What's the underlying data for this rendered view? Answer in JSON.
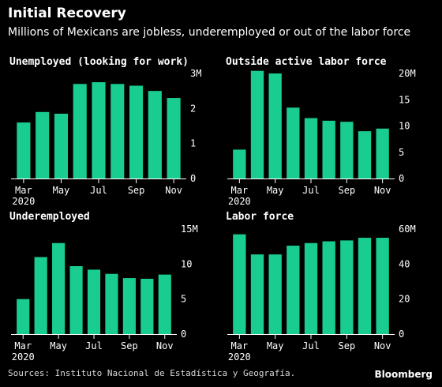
{
  "header": {
    "title": "Initial Recovery",
    "subtitle": "Millions of Mexicans are jobless, underemployed or out of the labor force"
  },
  "footer": {
    "source": "Sources: Instituto Nacional de Estadística y Geografía.",
    "brand": "Bloomberg"
  },
  "colors": {
    "bar": "#19cc8f",
    "background": "#000000",
    "text": "#ffffff",
    "axis": "#ffffff"
  },
  "chart_data": [
    {
      "type": "bar",
      "title": "Unemployed (looking for work)",
      "categories": [
        "Mar",
        "Apr",
        "May",
        "Jun",
        "Jul",
        "Aug",
        "Sep",
        "Oct",
        "Nov"
      ],
      "x_tick_labels": [
        "Mar",
        "May",
        "Jul",
        "Sep",
        "Nov"
      ],
      "x_year_label": "2020",
      "values": [
        1.6,
        1.9,
        1.85,
        2.7,
        2.75,
        2.7,
        2.65,
        2.5,
        2.3
      ],
      "ylim": [
        0,
        3
      ],
      "y_ticks": [
        0,
        1,
        2,
        3
      ],
      "y_tick_labels": [
        "0",
        "1",
        "2",
        "3M"
      ]
    },
    {
      "type": "bar",
      "title": "Outside active labor force",
      "categories": [
        "Mar",
        "Apr",
        "May",
        "Jun",
        "Jul",
        "Aug",
        "Sep",
        "Oct",
        "Nov"
      ],
      "x_tick_labels": [
        "Mar",
        "May",
        "Jul",
        "Sep",
        "Nov"
      ],
      "x_year_label": "2020",
      "values": [
        5.5,
        20.5,
        20,
        13.5,
        11.5,
        11,
        10.8,
        9,
        9.5
      ],
      "ylim": [
        0,
        20
      ],
      "y_ticks": [
        0,
        5,
        10,
        15,
        20
      ],
      "y_tick_labels": [
        "0",
        "5",
        "10",
        "15",
        "20M"
      ]
    },
    {
      "type": "bar",
      "title": "Underemployed",
      "categories": [
        "Mar",
        "Apr",
        "May",
        "Jun",
        "Jul",
        "Aug",
        "Sep",
        "Oct",
        "Nov"
      ],
      "x_tick_labels": [
        "Mar",
        "May",
        "Jul",
        "Sep",
        "Nov"
      ],
      "x_year_label": "2020",
      "values": [
        5,
        11,
        13,
        9.7,
        9.2,
        8.6,
        8,
        7.9,
        8.5
      ],
      "ylim": [
        0,
        15
      ],
      "y_ticks": [
        0,
        5,
        10,
        15
      ],
      "y_tick_labels": [
        "0",
        "5",
        "10",
        "15M"
      ]
    },
    {
      "type": "bar",
      "title": "Labor force",
      "categories": [
        "Mar",
        "Apr",
        "May",
        "Jun",
        "Jul",
        "Aug",
        "Sep",
        "Oct",
        "Nov"
      ],
      "x_tick_labels": [
        "Mar",
        "May",
        "Jul",
        "Sep",
        "Nov"
      ],
      "x_year_label": "2020",
      "values": [
        57,
        45.5,
        45.5,
        50.5,
        52,
        53,
        53.5,
        55,
        55
      ],
      "ylim": [
        0,
        60
      ],
      "y_ticks": [
        0,
        20,
        40,
        60
      ],
      "y_tick_labels": [
        "0",
        "20",
        "40",
        "60M"
      ]
    }
  ]
}
